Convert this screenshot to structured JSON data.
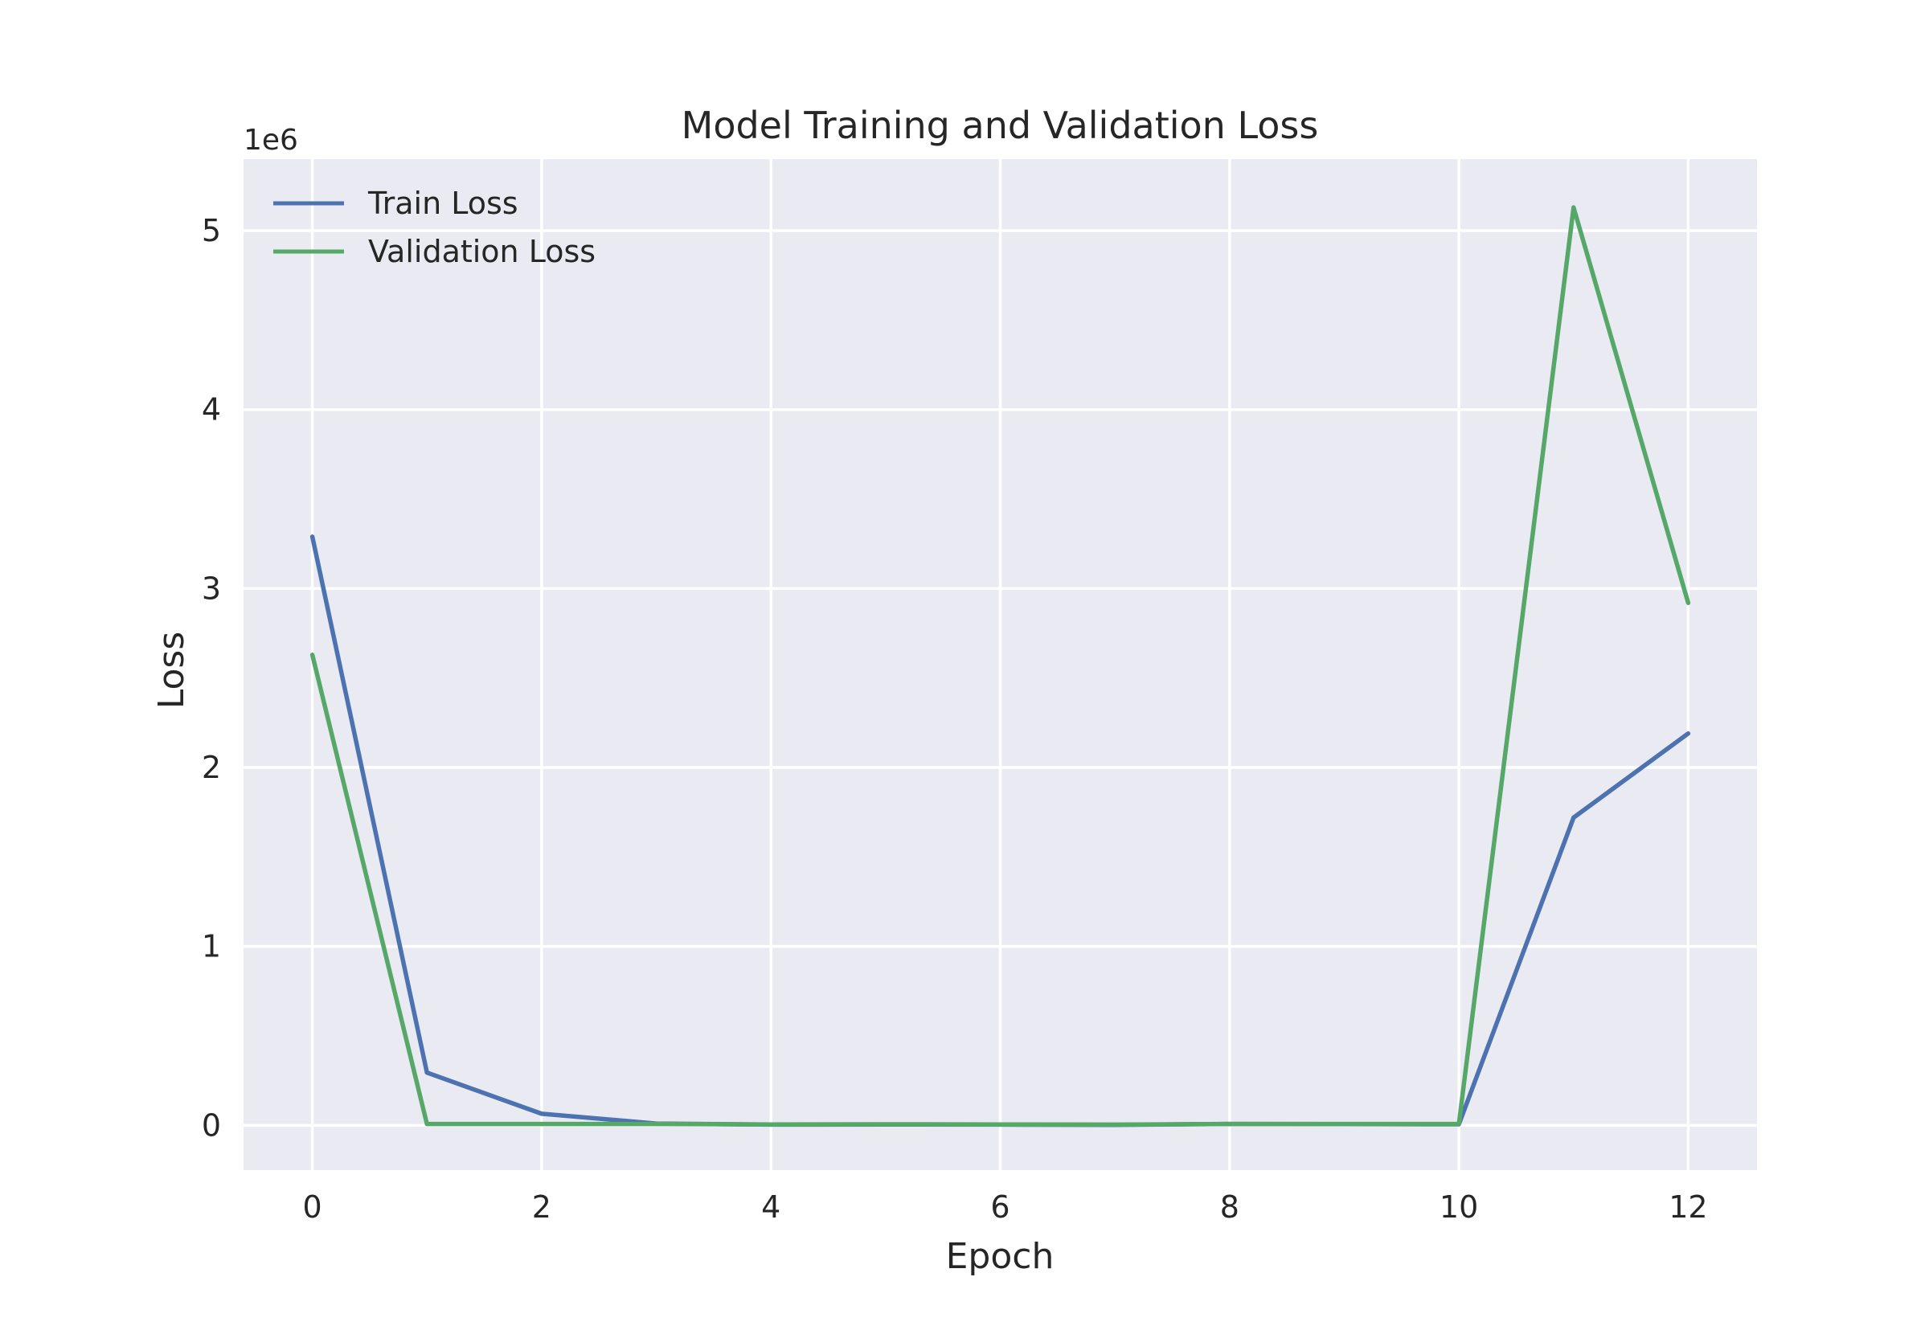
{
  "chart_data": {
    "type": "line",
    "title": "Model Training and Validation Loss",
    "xlabel": "Epoch",
    "ylabel": "Loss",
    "y_offset_label": "1e6",
    "y_scale": 1000000,
    "xlim": [
      -0.6,
      12.6
    ],
    "ylim": [
      -250000,
      5400000
    ],
    "xticks": [
      0,
      2,
      4,
      6,
      8,
      10,
      12
    ],
    "yticks": [
      0,
      1000000,
      2000000,
      3000000,
      4000000,
      5000000
    ],
    "ytick_labels": [
      "0",
      "1",
      "2",
      "3",
      "4",
      "5"
    ],
    "grid": true,
    "legend_position": "upper-left",
    "x": [
      0,
      1,
      2,
      3,
      4,
      5,
      6,
      7,
      8,
      9,
      10,
      11,
      12
    ],
    "series": [
      {
        "name": "Train Loss",
        "color": "#4c72b0",
        "values": [
          3290000,
          295000,
          65000,
          10000,
          4000,
          5000,
          4000,
          3000,
          8000,
          7000,
          6000,
          1720000,
          2190000
        ]
      },
      {
        "name": "Validation Loss",
        "color": "#55a868",
        "values": [
          2630000,
          8000,
          8000,
          8000,
          5000,
          6000,
          5000,
          4000,
          8000,
          8000,
          8000,
          5130000,
          2920000
        ]
      }
    ],
    "style": {
      "plot_background": "#eaeaf2",
      "grid_color": "#ffffff",
      "text_color": "#262626"
    }
  }
}
